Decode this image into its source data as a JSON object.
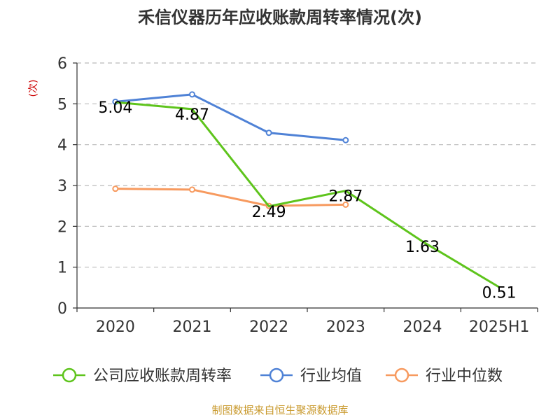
{
  "chart_data": {
    "type": "line",
    "title": "禾信仪器历年应收账款周转率情况(次)",
    "ylabel": "(次)",
    "xlabel": "",
    "categories": [
      "2020",
      "2021",
      "2022",
      "2023",
      "2024",
      "2025H1"
    ],
    "ylim": [
      0,
      6
    ],
    "yticks": [
      "0",
      "1",
      "2",
      "3",
      "4",
      "5",
      "6"
    ],
    "grid": true,
    "legend_position": "bottom",
    "series": [
      {
        "name": "公司应收账款周转率",
        "color": "#5ec41c",
        "values": [
          5.04,
          4.87,
          2.49,
          2.87,
          1.63,
          0.51
        ],
        "labels": [
          "5.04",
          "4.87",
          "2.49",
          "2.87",
          "1.63",
          "0.51"
        ]
      },
      {
        "name": "行业均值",
        "color": "#4f82d6",
        "values": [
          5.05,
          5.23,
          4.29,
          4.11,
          null,
          null
        ]
      },
      {
        "name": "行业中位数",
        "color": "#f79a5f",
        "values": [
          2.92,
          2.9,
          2.5,
          2.53,
          null,
          null
        ]
      }
    ],
    "source": "制图数据来自恒生聚源数据库"
  }
}
